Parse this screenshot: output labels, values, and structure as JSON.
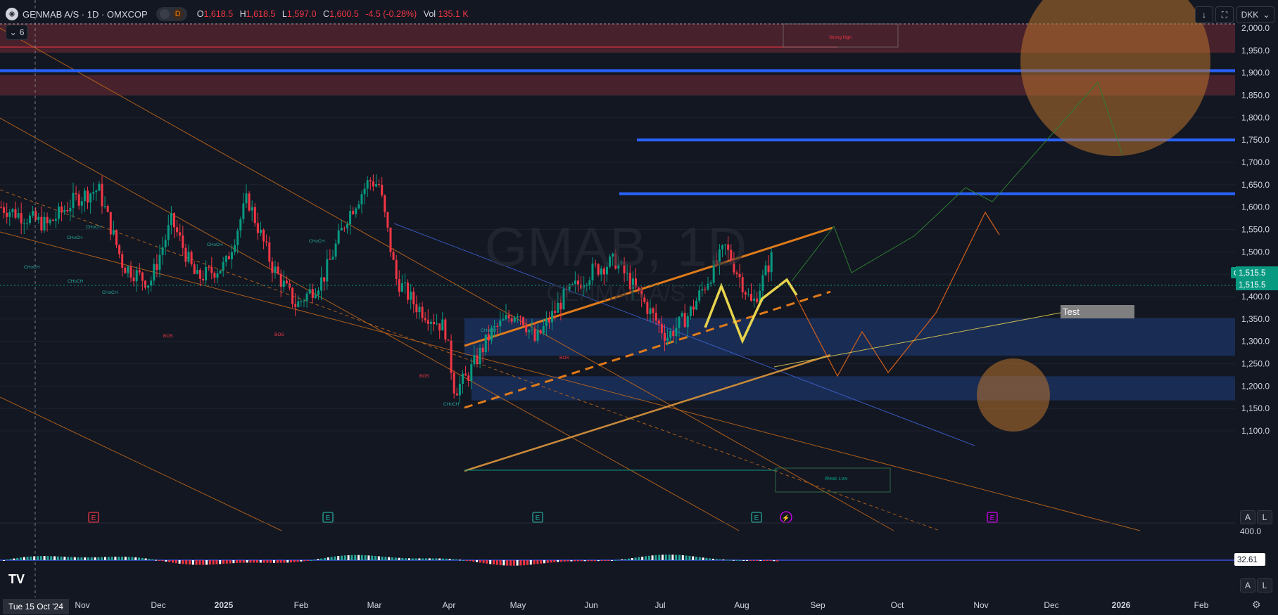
{
  "header": {
    "symbol_title": "GENMAB A/S · 1D · OMXCOP",
    "interval_badge": "D",
    "ohlc": [
      {
        "k": "O",
        "v": "1,618.5"
      },
      {
        "k": "H",
        "v": "1,618.5"
      },
      {
        "k": "L",
        "v": "1,597.0"
      },
      {
        "k": "C",
        "v": "1,600.5"
      }
    ],
    "change": "-4.5 (-0.28%)",
    "volume_label": "Vol",
    "volume": "135.1 K",
    "indicator_count": "6",
    "currency": "DKK"
  },
  "watermark": {
    "symbol": "GMAB, 1D",
    "name": "GENMAB A/S"
  },
  "toolbar": {
    "scale_a": "A",
    "scale_l": "L"
  },
  "crosshair_date": "Tue 15 Oct '24",
  "colors": {
    "background": "#131722",
    "up": "#089981",
    "down": "#f23645",
    "level_blue": "#2962ff",
    "trend_orange": "#e07b1a",
    "highlight_yellow": "#e8d44d",
    "zone_red": "#5a2530",
    "zone_blue": "#1c3464"
  },
  "chart_data": {
    "type": "candlestick",
    "symbol": "GMAB",
    "price_label": "1,515.5",
    "last_price": "1,515.5",
    "x_ticks": [
      "Nov",
      "Dec",
      "2025",
      "Feb",
      "Mar",
      "Apr",
      "May",
      "Jun",
      "Jul",
      "Aug",
      "Sep",
      "Oct",
      "Nov",
      "Dec",
      "2026",
      "Feb"
    ],
    "y_ticks": [
      1100,
      1150,
      1200,
      1250,
      1300,
      1350,
      1400,
      1450,
      1500,
      1550,
      1600,
      1650,
      1700,
      1750,
      1800,
      1850,
      1900,
      1950,
      2000
    ],
    "y_tick_labels": [
      "1,100.0",
      "1,150.0",
      "1,200.0",
      "1,250.0",
      "1,300.0",
      "1,350.0",
      "1,400.0",
      "1,450.0",
      "1,500.0",
      "1,550.0",
      "1,600.0",
      "1,650.0",
      "1,700.0",
      "1,750.0",
      "1,800.0",
      "1,850.0",
      "1,900.0",
      "1,950.0",
      "2,000.0"
    ],
    "ylim": [
      1045,
      2010
    ],
    "approx_closes": [
      [
        "2024-10-01",
        1600
      ],
      [
        "2024-10-10",
        1580
      ],
      [
        "2024-10-20",
        1560
      ],
      [
        "2024-11-01",
        1620
      ],
      [
        "2024-11-10",
        1640
      ],
      [
        "2024-11-20",
        1470
      ],
      [
        "2024-12-01",
        1430
      ],
      [
        "2024-12-10",
        1570
      ],
      [
        "2024-12-20",
        1440
      ],
      [
        "2025-01-01",
        1470
      ],
      [
        "2025-01-10",
        1620
      ],
      [
        "2025-01-20",
        1470
      ],
      [
        "2025-01-30",
        1380
      ],
      [
        "2025-02-10",
        1440
      ],
      [
        "2025-02-20",
        1580
      ],
      [
        "2025-03-01",
        1660
      ],
      [
        "2025-03-05",
        1650
      ],
      [
        "2025-03-12",
        1440
      ],
      [
        "2025-03-20",
        1380
      ],
      [
        "2025-04-01",
        1330
      ],
      [
        "2025-04-05",
        1190
      ],
      [
        "2025-04-10",
        1220
      ],
      [
        "2025-04-20",
        1320
      ],
      [
        "2025-05-01",
        1370
      ],
      [
        "2025-05-08",
        1300
      ],
      [
        "2025-05-20",
        1400
      ],
      [
        "2025-06-01",
        1460
      ],
      [
        "2025-06-10",
        1480
      ],
      [
        "2025-06-20",
        1400
      ],
      [
        "2025-07-01",
        1310
      ],
      [
        "2025-07-10",
        1360
      ],
      [
        "2025-07-20",
        1460
      ],
      [
        "2025-07-25",
        1510
      ],
      [
        "2025-08-01",
        1430
      ],
      [
        "2025-08-05",
        1380
      ],
      [
        "2025-08-15",
        1515
      ]
    ],
    "horizontal_levels": [
      1905,
      1750,
      1630
    ],
    "zones": [
      {
        "from": 1945,
        "to": 2010,
        "kind": "supply"
      },
      {
        "from": 1850,
        "to": 1895,
        "kind": "supply"
      },
      {
        "from": 1268,
        "to": 1352,
        "kind": "demand"
      },
      {
        "from": 1168,
        "to": 1222,
        "kind": "demand"
      }
    ],
    "annotations": {
      "strong_high": "Strong High",
      "weak_low": "Weak Low",
      "test_label": "Test",
      "structure_marks": [
        "CHoCH",
        "CHoCH",
        "CHoCH",
        "CHoCH",
        "CHoCH",
        "CHoCH",
        "CHoCH",
        "BOS",
        "BOS",
        "CHoCH",
        "BOS",
        "BOS",
        "CHoCH"
      ]
    },
    "earnings_marker": "E",
    "volume_axis_label": "400.0",
    "oscillator_value": "32.61"
  }
}
